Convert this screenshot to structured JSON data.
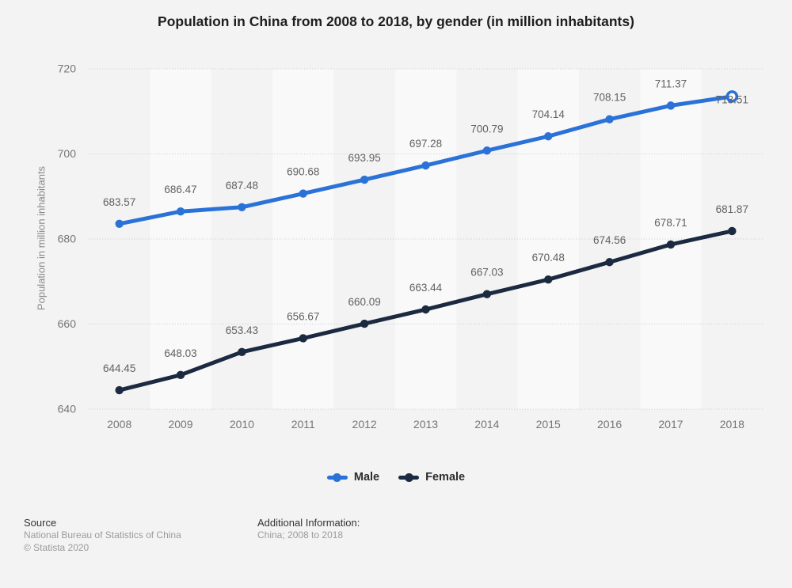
{
  "chart_data": {
    "type": "line",
    "title": "Population in China from 2008 to 2018, by gender (in million inhabitants)",
    "xlabel": "",
    "ylabel": "Population in million inhabitants",
    "categories": [
      "2008",
      "2009",
      "2010",
      "2011",
      "2012",
      "2013",
      "2014",
      "2015",
      "2016",
      "2017",
      "2018"
    ],
    "series": [
      {
        "name": "Male",
        "color": "#2b72d8",
        "values": [
          683.57,
          686.47,
          687.48,
          690.68,
          693.95,
          697.28,
          700.79,
          704.14,
          708.15,
          711.37,
          713.51
        ],
        "end_marker": "open-circle",
        "end_label_position": "on-point"
      },
      {
        "name": "Female",
        "color": "#1b2a40",
        "values": [
          644.45,
          648.03,
          653.43,
          656.67,
          660.09,
          663.44,
          667.03,
          670.48,
          674.56,
          678.71,
          681.87
        ],
        "end_marker": "dot",
        "end_label_position": "above"
      }
    ],
    "ylim": [
      640,
      720
    ],
    "yticks": [
      720,
      700,
      680,
      660,
      640
    ],
    "grid": "horizontal-dotted",
    "background_bands": "alternating-vertical-columns",
    "legend_position": "bottom",
    "data_labels": "all-points-2-decimals"
  },
  "footer": {
    "source_label": "Source",
    "source_name": "National Bureau of Statistics of China",
    "copyright": "© Statista 2020",
    "additional_info_label": "Additional Information:",
    "additional_info_value": "China; 2008 to 2018"
  },
  "colors": {
    "background": "#f3f3f3",
    "band": "#f9f9f9",
    "gridline": "#c9c9c9",
    "tick_label": "#757575",
    "data_label": "#616161",
    "axis_title": "#8a8a8a",
    "title_text": "#1e1e1e",
    "legend_text": "#2d2d2d",
    "footer_label": "#333333",
    "footer_text": "#9b9b9b"
  }
}
